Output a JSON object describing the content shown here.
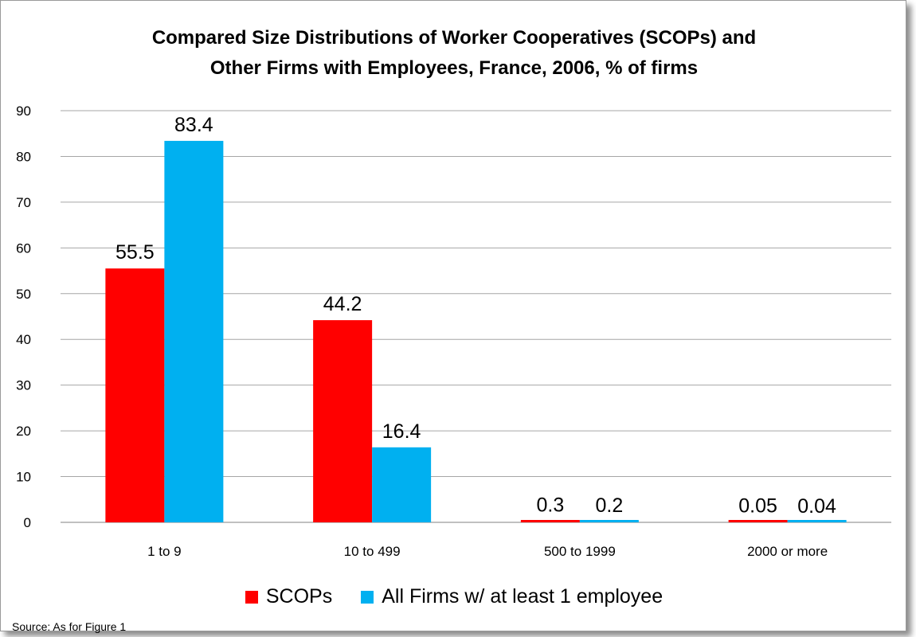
{
  "chart_data": {
    "type": "bar",
    "title_lines": [
      "Compared Size Distributions of Worker Cooperatives (SCOPs) and",
      "Other Firms with Employees, France, 2006, % of firms"
    ],
    "categories": [
      "1 to 9",
      "10 to 499",
      "500 to 1999",
      "2000 or more"
    ],
    "series": [
      {
        "name": "SCOPs",
        "values": [
          55.5,
          44.2,
          0.3,
          0.05
        ],
        "labels": [
          "55.5",
          "44.2",
          "0.3",
          "0.05"
        ],
        "color": "#ff0000"
      },
      {
        "name": "All Firms w/ at least 1 employee",
        "values": [
          83.4,
          16.4,
          0.2,
          0.04
        ],
        "labels": [
          "83.4",
          "16.4",
          "0.2",
          "0.04"
        ],
        "color": "#00b0f0"
      }
    ],
    "yticks": [
      "0",
      "10",
      "20",
      "30",
      "40",
      "50",
      "60",
      "70",
      "80",
      "90"
    ],
    "ylim": [
      0,
      90
    ],
    "grid": true,
    "legend": "bottom",
    "source": "Source: As for Figure 1"
  }
}
